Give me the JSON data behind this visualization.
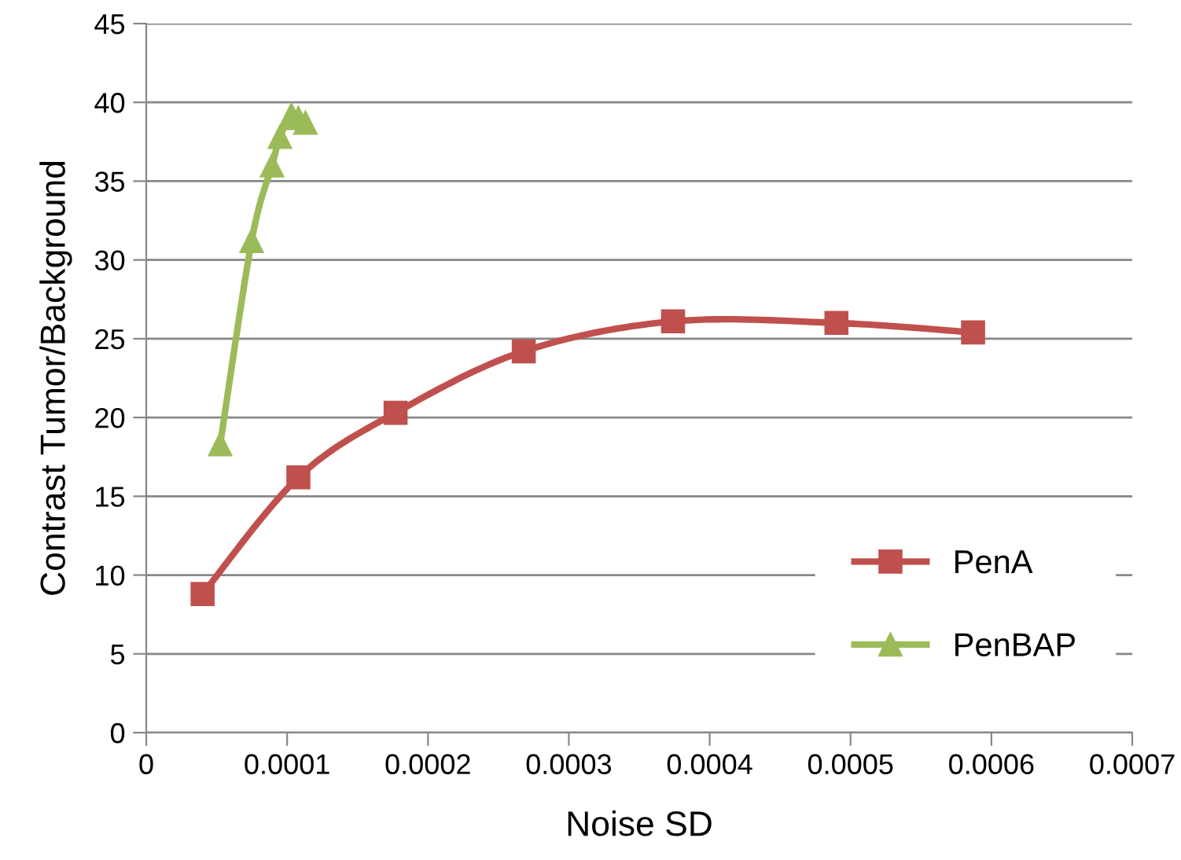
{
  "chart_data": {
    "type": "line",
    "xlabel": "Noise SD",
    "ylabel": "Contrast Tumor/Background",
    "xlim": [
      0,
      0.0007
    ],
    "xticks": [
      0,
      0.0001,
      0.0002,
      0.0003,
      0.0004,
      0.0005,
      0.0006,
      0.0007
    ],
    "ylim": [
      0,
      45
    ],
    "yticks": [
      0,
      5,
      10,
      15,
      20,
      25,
      30,
      35,
      40,
      45
    ],
    "grid": "y",
    "legend": "bottom right",
    "series": [
      {
        "name": "PenA",
        "color": "#c0504d",
        "marker": "square",
        "x": [
          4e-05,
          0.000108,
          0.000177,
          0.000268,
          0.000374,
          0.00049,
          0.000587
        ],
        "values": [
          8.8,
          16.2,
          20.3,
          24.2,
          26.1,
          26.0,
          25.4
        ]
      },
      {
        "name": "PenBAP",
        "color": "#9bbb59",
        "marker": "triangle",
        "x": [
          5.25e-05,
          7.48e-05,
          8.93e-05,
          9.49e-05,
          0.000103,
          0.000108,
          0.000113
        ],
        "values": [
          18.3,
          31.2,
          36.0,
          37.8,
          39.2,
          39.0,
          38.7
        ]
      }
    ]
  }
}
